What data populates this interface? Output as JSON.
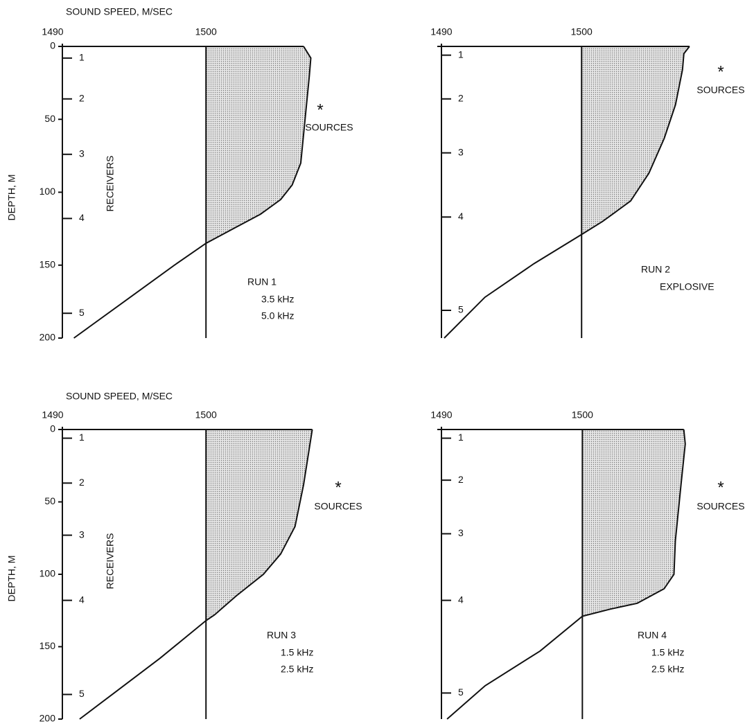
{
  "chart_data": [
    {
      "type": "line",
      "title": "SOUND SPEED, M/SEC",
      "ylabel": "DEPTH, M",
      "xlim": [
        1490,
        1508
      ],
      "ylim": [
        0,
        200
      ],
      "xticks": [
        1490,
        1500
      ],
      "yticks": [
        0,
        50,
        100,
        150,
        200
      ],
      "depth": [
        0,
        8,
        20,
        50,
        80,
        95,
        105,
        115,
        125,
        135,
        150,
        175,
        200
      ],
      "sound_speed": [
        1506.8,
        1507.3,
        1507.2,
        1506.9,
        1506.6,
        1506.0,
        1505.2,
        1503.8,
        1501.9,
        1500,
        1497.8,
        1494.3,
        1490.8
      ],
      "receivers_label": "RECEIVERS",
      "receivers": [
        {
          "depth": 8,
          "label": "1"
        },
        {
          "depth": 36,
          "label": "2"
        },
        {
          "depth": 74,
          "label": "3"
        },
        {
          "depth": 118,
          "label": "4"
        },
        {
          "depth": 183,
          "label": "5"
        }
      ],
      "sources_marker": "*",
      "sources_label": "SOURCES",
      "annotations": [
        "RUN 1",
        "3.5 kHz",
        "5.0 kHz"
      ]
    },
    {
      "type": "line",
      "xlim": [
        1490,
        1508
      ],
      "ylim": [
        0,
        200
      ],
      "xticks": [
        1490,
        1500
      ],
      "depth": [
        0,
        5,
        16,
        40,
        63,
        87,
        106,
        120,
        129,
        149,
        172,
        200
      ],
      "sound_speed": [
        1507.7,
        1507.3,
        1507.2,
        1506.7,
        1505.9,
        1504.8,
        1503.5,
        1501.5,
        1500,
        1496.6,
        1493.1,
        1490.2
      ],
      "receivers": [
        {
          "depth": 6,
          "label": "1"
        },
        {
          "depth": 36,
          "label": "2"
        },
        {
          "depth": 73,
          "label": "3"
        },
        {
          "depth": 117,
          "label": "4"
        },
        {
          "depth": 181,
          "label": "5"
        }
      ],
      "sources_marker": "*",
      "sources_label": "SOURCES",
      "annotations": [
        "RUN 2",
        "EXPLOSIVE"
      ]
    },
    {
      "type": "line",
      "title": "SOUND SPEED, M/SEC",
      "ylabel": "DEPTH, M",
      "xlim": [
        1490,
        1508
      ],
      "ylim": [
        0,
        200
      ],
      "xticks": [
        1490,
        1500
      ],
      "yticks": [
        0,
        50,
        100,
        150,
        200
      ],
      "depth": [
        0,
        38,
        67,
        86,
        100,
        115,
        128,
        132,
        158,
        182,
        200
      ],
      "sound_speed": [
        1507.4,
        1506.8,
        1506.2,
        1505.2,
        1504.0,
        1502.1,
        1500.6,
        1500,
        1496.8,
        1493.6,
        1491.2
      ],
      "receivers_label": "RECEIVERS",
      "receivers": [
        {
          "depth": 6,
          "label": "1"
        },
        {
          "depth": 37,
          "label": "2"
        },
        {
          "depth": 73,
          "label": "3"
        },
        {
          "depth": 118,
          "label": "4"
        },
        {
          "depth": 183,
          "label": "5"
        }
      ],
      "sources_marker": "*",
      "sources_label": "SOURCES",
      "annotations": [
        "RUN 3",
        "1.5 kHz",
        "2.5 kHz"
      ]
    },
    {
      "type": "line",
      "xlim": [
        1490,
        1508
      ],
      "ylim": [
        0,
        200
      ],
      "xticks": [
        1490,
        1500
      ],
      "depth": [
        0,
        10,
        38,
        77,
        100,
        110,
        120,
        124,
        129,
        153,
        177,
        200
      ],
      "sound_speed": [
        1507.2,
        1507.3,
        1507.0,
        1506.6,
        1506.5,
        1505.8,
        1503.9,
        1502.0,
        1500,
        1497.0,
        1493.1,
        1490.4
      ],
      "receivers": [
        {
          "depth": 6,
          "label": "1"
        },
        {
          "depth": 35,
          "label": "2"
        },
        {
          "depth": 72,
          "label": "3"
        },
        {
          "depth": 118,
          "label": "4"
        },
        {
          "depth": 182,
          "label": "5"
        }
      ],
      "sources_marker": "*",
      "sources_label": "SOURCES",
      "annotations": [
        "RUN 4",
        "1.5 kHz",
        "2.5 kHz"
      ]
    }
  ]
}
